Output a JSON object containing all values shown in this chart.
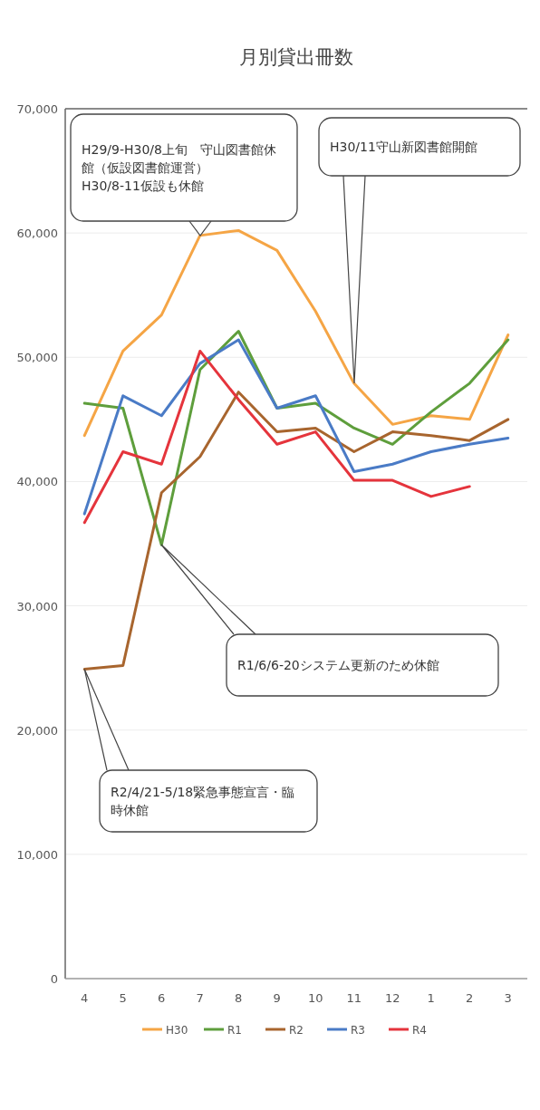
{
  "chart_data": {
    "type": "line",
    "title": "月別貸出冊数",
    "categories": [
      "4",
      "5",
      "6",
      "7",
      "8",
      "9",
      "10",
      "11",
      "12",
      "1",
      "2",
      "3"
    ],
    "series": [
      {
        "name": "H30",
        "color": "#f5a545",
        "values": [
          43700,
          50500,
          53400,
          59800,
          60200,
          58600,
          53700,
          47900,
          44600,
          45300,
          45000,
          51800
        ]
      },
      {
        "name": "R1",
        "color": "#5e9e3c",
        "values": [
          46300,
          45900,
          34900,
          49000,
          52100,
          45900,
          46300,
          44300,
          43000,
          45600,
          47900,
          51400
        ]
      },
      {
        "name": "R2",
        "color": "#a8652e",
        "values": [
          24900,
          25200,
          39100,
          42000,
          47200,
          44000,
          44300,
          42400,
          44000,
          43700,
          43300,
          45000
        ]
      },
      {
        "name": "R3",
        "color": "#4a7bc6",
        "values": [
          37400,
          46900,
          45300,
          49500,
          51400,
          45900,
          46900,
          40800,
          41400,
          42400,
          43000,
          43500
        ]
      },
      {
        "name": "R4",
        "color": "#e5343c",
        "values": [
          36700,
          42400,
          41400,
          50500,
          46600,
          43000,
          44000,
          40100,
          40100,
          38800,
          39600,
          null
        ]
      }
    ],
    "ylim": [
      0,
      70000
    ],
    "yticks": [
      0,
      {
        "value": 10000,
        "label": "10,000"
      },
      {
        "value": 20000,
        "label": "20,000"
      },
      {
        "value": 30000,
        "label": "30,000"
      },
      {
        "value": 40000,
        "label": "40,000"
      },
      {
        "value": 50000,
        "label": "50,000"
      },
      {
        "value": 60000,
        "label": "60,000"
      },
      {
        "value": 70000,
        "label": "70,000"
      }
    ],
    "grid": "y",
    "legend": "bottom",
    "line_style": "solid",
    "marker": "none",
    "annotations": [
      "H29/9-H30/8上旬　守山図書館休館（仮設図書館運営）\nH30/8-11仮設も休館",
      "R1/6/6-20システム更新のため休館",
      {
        "text": "R2/4/21-5/18緊急事態宣言・臨時休館",
        "x": "4",
        "y": 24900
      },
      "H30/11守山新図書館開館"
    ]
  }
}
